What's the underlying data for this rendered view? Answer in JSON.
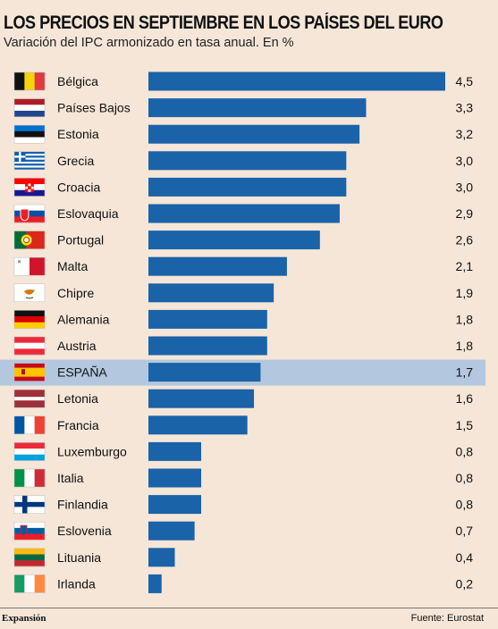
{
  "title": "LOS PRECIOS EN SEPTIEMBRE EN LOS PAÍSES DEL EURO",
  "subtitle": "Variación del IPC armonizado en tasa anual. En %",
  "footer": {
    "brand": "Expansión",
    "source": "Fuente: Eurostat"
  },
  "colors": {
    "background": "#f5e6d8",
    "bar": "#1a63a8",
    "highlight_row": "#b3c8de"
  },
  "chart_data": {
    "type": "bar",
    "orientation": "horizontal",
    "categories": [
      "Bélgica",
      "Países Bajos",
      "Estonia",
      "Grecia",
      "Croacia",
      "Eslovaquia",
      "Portugal",
      "Malta",
      "Chipre",
      "Alemania",
      "Austria",
      "ESPAÑA",
      "Letonia",
      "Francia",
      "Luxemburgo",
      "Italia",
      "Finlandia",
      "Eslovenia",
      "Lituania",
      "Irlanda"
    ],
    "values": [
      4.5,
      3.3,
      3.2,
      3.0,
      3.0,
      2.9,
      2.6,
      2.1,
      1.9,
      1.8,
      1.8,
      1.7,
      1.6,
      1.5,
      0.8,
      0.8,
      0.8,
      0.7,
      0.4,
      0.2
    ],
    "value_labels": [
      "4,5",
      "3,3",
      "3,2",
      "3,0",
      "3,0",
      "2,9",
      "2,6",
      "2,1",
      "1,9",
      "1,8",
      "1,8",
      "1,7",
      "1,6",
      "1,5",
      "0,8",
      "0,8",
      "0,8",
      "0,7",
      "0,4",
      "0,2"
    ],
    "flags": [
      "belgium-flag-icon",
      "netherlands-flag-icon",
      "estonia-flag-icon",
      "greece-flag-icon",
      "croatia-flag-icon",
      "slovakia-flag-icon",
      "portugal-flag-icon",
      "malta-flag-icon",
      "cyprus-flag-icon",
      "germany-flag-icon",
      "austria-flag-icon",
      "spain-flag-icon",
      "latvia-flag-icon",
      "france-flag-icon",
      "luxembourg-flag-icon",
      "italy-flag-icon",
      "finland-flag-icon",
      "slovenia-flag-icon",
      "lithuania-flag-icon",
      "ireland-flag-icon"
    ],
    "highlight": "ESPAÑA",
    "xlim": [
      0,
      4.5
    ],
    "grid": false
  }
}
